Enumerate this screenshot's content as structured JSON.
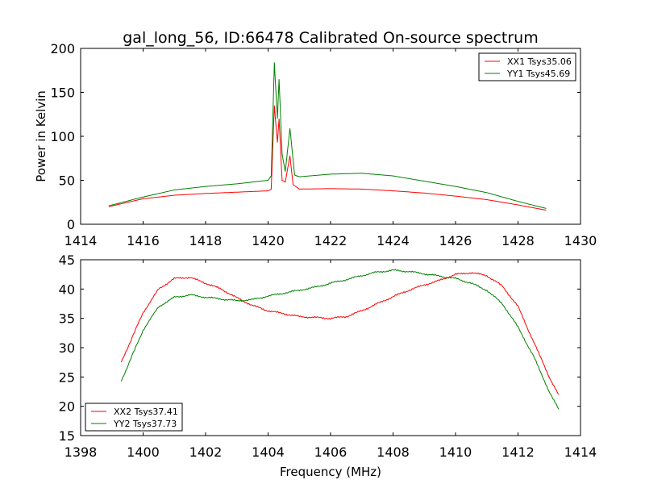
{
  "chart_data": [
    {
      "type": "line",
      "title": "gal_long_56, ID:66478 Calibrated On-source spectrum",
      "xlabel": "",
      "ylabel": "Power in Kelvin",
      "xlim": [
        1414,
        1430
      ],
      "ylim": [
        0,
        200
      ],
      "xticks": [
        1414,
        1416,
        1418,
        1420,
        1422,
        1424,
        1426,
        1428,
        1430
      ],
      "yticks": [
        0,
        50,
        100,
        150,
        200
      ],
      "legend_position": "top-right",
      "series": [
        {
          "name": "XX1 Tsys35.06",
          "color": "#ff0000",
          "x": [
            1414.9,
            1416,
            1417,
            1418,
            1419,
            1420,
            1420.1,
            1420.2,
            1420.3,
            1420.35,
            1420.45,
            1420.55,
            1420.7,
            1420.8,
            1421,
            1422,
            1423,
            1424,
            1425,
            1426,
            1427,
            1428,
            1428.9
          ],
          "y": [
            20,
            29,
            33,
            35,
            36.5,
            38,
            40,
            135,
            93,
            120,
            50,
            48,
            78,
            45,
            40,
            40.5,
            40,
            38,
            35.5,
            32,
            28,
            22,
            16
          ]
        },
        {
          "name": "YY1 Tsys45.69",
          "color": "#008000",
          "x": [
            1414.9,
            1416,
            1417,
            1418,
            1419,
            1420,
            1420.1,
            1420.2,
            1420.3,
            1420.35,
            1420.45,
            1420.55,
            1420.7,
            1420.85,
            1421,
            1422,
            1423,
            1424,
            1425,
            1426,
            1427,
            1428,
            1428.9
          ],
          "y": [
            21,
            31,
            39,
            43,
            46,
            50,
            55,
            184,
            120,
            165,
            80,
            60,
            109,
            56,
            54,
            57,
            58,
            55,
            49,
            43,
            36,
            26,
            18
          ]
        }
      ]
    },
    {
      "type": "line",
      "title": "",
      "xlabel": "Frequency (MHz)",
      "ylabel": "",
      "xlim": [
        1398,
        1414
      ],
      "ylim": [
        15,
        45
      ],
      "xticks": [
        1398,
        1400,
        1402,
        1404,
        1406,
        1408,
        1410,
        1412,
        1414
      ],
      "yticks": [
        15,
        20,
        25,
        30,
        35,
        40,
        45
      ],
      "legend_position": "bottom-left",
      "series": [
        {
          "name": "XX2 Tsys37.41",
          "color": "#ff0000",
          "x": [
            1399.3,
            1400,
            1400.5,
            1401,
            1401.5,
            1402,
            1402.5,
            1403,
            1403.5,
            1404,
            1405,
            1406,
            1406.5,
            1407,
            1407.5,
            1408,
            1408.5,
            1409,
            1409.5,
            1410,
            1410.5,
            1411,
            1411.5,
            1412,
            1412.5,
            1413,
            1413.3
          ],
          "y": [
            27.5,
            36,
            40,
            41.8,
            42,
            41,
            40,
            38.5,
            37.2,
            36.3,
            35.3,
            35,
            35.3,
            36.3,
            37.5,
            38.7,
            39.8,
            40.7,
            41.5,
            42.5,
            42.8,
            42.3,
            40.5,
            37,
            31,
            25,
            22
          ]
        },
        {
          "name": "YY2 Tsys37.73",
          "color": "#008000",
          "x": [
            1399.3,
            1400,
            1400.5,
            1401,
            1401.5,
            1402,
            1402.5,
            1403,
            1403.5,
            1404,
            1404.5,
            1405,
            1405.5,
            1406,
            1406.5,
            1407,
            1407.5,
            1408,
            1408.5,
            1409,
            1409.5,
            1410,
            1410.5,
            1411,
            1411.5,
            1412,
            1412.5,
            1413,
            1413.3
          ],
          "y": [
            24.3,
            33,
            37,
            38.6,
            39,
            38.6,
            38.3,
            38,
            38.2,
            38.8,
            39.3,
            39.8,
            40.3,
            41,
            41.6,
            42.3,
            42.9,
            43.2,
            43,
            42.6,
            42.2,
            41.8,
            41,
            39.8,
            37.5,
            33.5,
            28.5,
            22.5,
            19.5
          ]
        }
      ]
    }
  ]
}
